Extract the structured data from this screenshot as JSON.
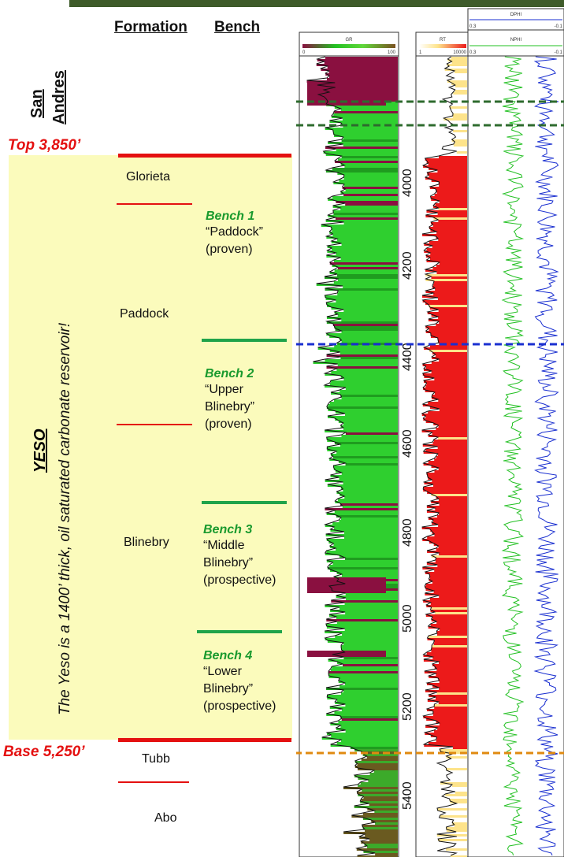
{
  "headers": {
    "formation": "Formation",
    "bench": "Bench"
  },
  "san_andres": [
    "San",
    "Andres"
  ],
  "top_label": "Top 3,850’",
  "base_label": "Base 5,250’",
  "yeso": {
    "title": "YESO",
    "caption": "The Yeso is a 1400’ thick, oil saturated carbonate reservoir!"
  },
  "formations": {
    "glorieta": "Glorieta",
    "paddock": "Paddock",
    "blinebry": "Blinebry",
    "tubb": "Tubb",
    "abo": "Abo"
  },
  "benches": [
    {
      "title": "Bench 1",
      "lines": [
        "“Paddock”",
        "(proven)"
      ]
    },
    {
      "title": "Bench 2",
      "lines": [
        "“Upper",
        "Blinebry”",
        "(proven)"
      ]
    },
    {
      "title": "Bench 3",
      "lines": [
        "“Middle",
        "Blinebry”",
        "(prospective)"
      ]
    },
    {
      "title": "Bench 4",
      "lines": [
        "“Lower",
        "Blinebry”",
        "(prospective)"
      ]
    }
  ],
  "log": {
    "gr": {
      "name": "GR",
      "min": "0",
      "max": "100"
    },
    "rt": {
      "name": "RT",
      "min": "1",
      "max": "10000"
    },
    "dphi": {
      "name": "DPHI",
      "left": "0.3",
      "right": "-0.1"
    },
    "nphi": {
      "name": "NPHI",
      "left": "0.3",
      "right": "-0.1"
    },
    "depth_ticks": [
      "4000",
      "4200",
      "4400",
      "4600",
      "4800",
      "5000",
      "5200",
      "5400"
    ]
  },
  "colors": {
    "red": "#e41010",
    "green": "#1fa34a",
    "yeso_fill": "#fbfbbc",
    "dashed_green": "#2e6b2e",
    "dashed_blue": "#1a2fd0",
    "dashed_orange": "#e08a10"
  }
}
